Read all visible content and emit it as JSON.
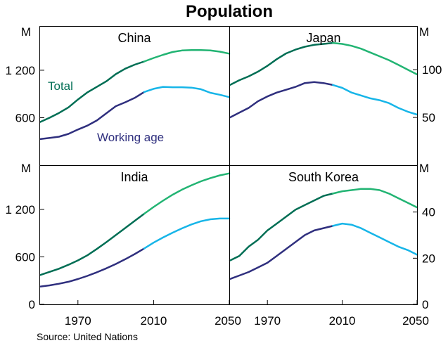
{
  "chart_data": {
    "type": "line",
    "title": "Population",
    "source": "Source: United Nations",
    "unit_label": "M",
    "colors": {
      "total_hist": "#006e54",
      "total_proj": "#22b473",
      "working_hist": "#2f2f7e",
      "working_proj": "#17b5e8"
    },
    "annotations": {
      "total": "Total",
      "working_age": "Working age"
    },
    "x_range": [
      1950,
      2050
    ],
    "x_ticks": [
      1970,
      2010,
      2050
    ],
    "x_tick_labels": {
      "1970": "1970",
      "2010": "2010",
      "2050": "2050"
    },
    "projection_start": 2005,
    "left_axis": {
      "ticks": [
        0,
        600,
        1200
      ],
      "labels": [
        "0",
        "600",
        "1 200"
      ]
    },
    "right_axis_top": {
      "ticks": [
        50,
        100
      ],
      "labels": [
        "50",
        "100"
      ]
    },
    "right_axis_bottom": {
      "ticks": [
        0,
        20,
        40
      ],
      "labels": [
        "0",
        "20",
        "40"
      ]
    },
    "panels": [
      {
        "name": "China",
        "ylim": [
          0,
          1750
        ],
        "x": [
          1950,
          1955,
          1960,
          1965,
          1970,
          1975,
          1980,
          1985,
          1990,
          1995,
          2000,
          2005,
          2010,
          2015,
          2020,
          2025,
          2030,
          2035,
          2040,
          2045,
          2050
        ],
        "total": [
          545,
          600,
          660,
          730,
          830,
          920,
          990,
          1060,
          1150,
          1220,
          1270,
          1310,
          1355,
          1395,
          1430,
          1450,
          1455,
          1455,
          1450,
          1435,
          1410
        ],
        "working_age": [
          330,
          345,
          360,
          395,
          450,
          500,
          565,
          655,
          745,
          795,
          850,
          925,
          965,
          990,
          985,
          985,
          980,
          960,
          915,
          890,
          860
        ]
      },
      {
        "name": "Japan",
        "ylim": [
          0,
          145
        ],
        "x": [
          1950,
          1955,
          1960,
          1965,
          1970,
          1975,
          1980,
          1985,
          1990,
          1995,
          2000,
          2005,
          2010,
          2015,
          2020,
          2025,
          2030,
          2035,
          2040,
          2045,
          2050
        ],
        "total": [
          84,
          89,
          93,
          98,
          104,
          111,
          117,
          121,
          124,
          126,
          127,
          128,
          127,
          125,
          122,
          118,
          114,
          110,
          105,
          100,
          95
        ],
        "working_age": [
          50,
          55,
          60,
          67,
          72,
          76,
          79,
          82,
          86,
          87,
          86,
          84,
          81,
          76,
          73,
          70,
          68,
          65,
          60,
          56,
          53
        ]
      },
      {
        "name": "India",
        "ylim": [
          0,
          1750
        ],
        "x": [
          1950,
          1955,
          1960,
          1965,
          1970,
          1975,
          1980,
          1985,
          1990,
          1995,
          2000,
          2005,
          2010,
          2015,
          2020,
          2025,
          2030,
          2035,
          2040,
          2045,
          2050
        ],
        "total": [
          370,
          410,
          450,
          500,
          555,
          620,
          700,
          785,
          875,
          965,
          1055,
          1145,
          1230,
          1310,
          1385,
          1450,
          1505,
          1555,
          1595,
          1630,
          1655
        ],
        "working_age": [
          225,
          240,
          260,
          285,
          320,
          360,
          405,
          455,
          510,
          570,
          635,
          705,
          780,
          845,
          905,
          960,
          1010,
          1050,
          1075,
          1085,
          1085
        ]
      },
      {
        "name": "South Korea",
        "ylim": [
          0,
          60
        ],
        "x": [
          1950,
          1955,
          1960,
          1965,
          1970,
          1975,
          1980,
          1985,
          1990,
          1995,
          2000,
          2005,
          2010,
          2015,
          2020,
          2025,
          2030,
          2035,
          2040,
          2045,
          2050
        ],
        "total": [
          19,
          21,
          25,
          28,
          32,
          35,
          38,
          41,
          43,
          45,
          47,
          48,
          49,
          49.5,
          50,
          50,
          49.5,
          48,
          46,
          44,
          42
        ],
        "working_age": [
          11,
          12.5,
          14,
          16,
          18,
          21,
          24,
          27,
          30,
          32,
          33,
          34,
          35,
          34.5,
          33,
          31,
          29,
          27,
          25,
          23.5,
          21.5
        ]
      }
    ]
  }
}
